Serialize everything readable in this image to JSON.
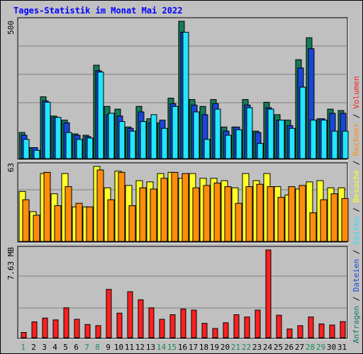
{
  "chart_data": [
    {
      "type": "bar",
      "panel": "top",
      "title": "Tages-Statistik im Monat Mai 2022",
      "categories": [
        "1",
        "2",
        "3",
        "4",
        "5",
        "6",
        "7",
        "8",
        "9",
        "10",
        "11",
        "12",
        "13",
        "14",
        "15",
        "16",
        "17",
        "18",
        "19",
        "20",
        "21",
        "22",
        "23",
        "24",
        "25",
        "26",
        "27",
        "28",
        "29",
        "30",
        "31"
      ],
      "y_tick_label": "500",
      "ylim": [
        0,
        500
      ],
      "series": [
        {
          "name": "Anfragen",
          "color": "#157a5c",
          "values": [
            95,
            40,
            225,
            155,
            140,
            90,
            85,
            340,
            190,
            180,
            115,
            190,
            145,
            130,
            220,
            500,
            215,
            190,
            215,
            115,
            115,
            215,
            100,
            205,
            160,
            140,
            360,
            440,
            145,
            180,
            175
          ]
        },
        {
          "name": "Dateien",
          "color": "#1a46d8",
          "values": [
            85,
            40,
            210,
            150,
            130,
            85,
            80,
            320,
            160,
            155,
            110,
            170,
            130,
            140,
            200,
            460,
            195,
            160,
            200,
            100,
            115,
            195,
            95,
            185,
            140,
            120,
            330,
            400,
            145,
            165,
            165
          ]
        },
        {
          "name": "Seiten",
          "color": "#22e6ff",
          "values": [
            70,
            30,
            205,
            150,
            95,
            70,
            75,
            315,
            165,
            135,
            100,
            135,
            160,
            110,
            190,
            460,
            170,
            70,
            180,
            85,
            105,
            185,
            55,
            180,
            140,
            110,
            260,
            140,
            140,
            100,
            100
          ]
        }
      ]
    },
    {
      "type": "bar",
      "panel": "middle",
      "categories": [
        "1",
        "2",
        "3",
        "4",
        "5",
        "6",
        "7",
        "8",
        "9",
        "10",
        "11",
        "12",
        "13",
        "14",
        "15",
        "16",
        "17",
        "18",
        "19",
        "20",
        "21",
        "22",
        "23",
        "24",
        "25",
        "26",
        "27",
        "28",
        "29",
        "30",
        "31"
      ],
      "y_tick_label": "63",
      "ylim": [
        0,
        63
      ],
      "series": [
        {
          "name": "Besuche",
          "color": "#ffff28",
          "values": [
            42,
            25,
            57,
            40,
            57,
            29,
            29,
            63,
            45,
            59,
            47,
            51,
            50,
            57,
            58,
            53,
            57,
            53,
            53,
            51,
            45,
            57,
            51,
            57,
            46,
            39,
            44,
            50,
            51,
            45,
            45
          ]
        },
        {
          "name": "Rechner",
          "color": "#ff8c0c",
          "values": [
            35,
            22,
            58,
            30,
            46,
            32,
            29,
            60,
            35,
            58,
            30,
            45,
            44,
            53,
            58,
            57,
            45,
            47,
            49,
            46,
            32,
            46,
            48,
            46,
            37,
            46,
            47,
            24,
            35,
            40,
            36
          ]
        }
      ]
    },
    {
      "type": "bar",
      "panel": "bottom",
      "categories": [
        "1",
        "2",
        "3",
        "4",
        "5",
        "6",
        "7",
        "8",
        "9",
        "10",
        "11",
        "12",
        "13",
        "14",
        "15",
        "16",
        "17",
        "18",
        "19",
        "20",
        "21",
        "22",
        "23",
        "24",
        "25",
        "26",
        "27",
        "28",
        "29",
        "30",
        "31"
      ],
      "y_tick_label": "7.63 MB",
      "ylim": [
        0,
        7.63
      ],
      "unit": "MB",
      "series": [
        {
          "name": "Volumen",
          "color": "#ff2020",
          "values": [
            0.46,
            1.38,
            1.71,
            1.55,
            2.6,
            1.6,
            1.15,
            1.05,
            4.2,
            2.14,
            4.0,
            3.3,
            2.6,
            1.6,
            2.0,
            2.5,
            2.4,
            1.25,
            0.8,
            1.3,
            2.0,
            1.8,
            2.4,
            7.63,
            1.96,
            0.76,
            1.05,
            1.8,
            1.2,
            1.1,
            1.4
          ]
        }
      ]
    }
  ],
  "legend": {
    "right_top": [
      "Anfragen",
      "Dateien",
      "Seiten",
      "Besuche",
      "Rechner",
      "Volumen"
    ],
    "separator": "/"
  },
  "weekend_days": [
    "1",
    "7",
    "8",
    "14",
    "15",
    "21",
    "22",
    "28",
    "29"
  ],
  "colors": {
    "background": "#c0c0c0",
    "panel": "#c0c0c0",
    "title": "#0000ff",
    "weekend_label": "#1a8a5a",
    "weekday_label": "#000000"
  }
}
